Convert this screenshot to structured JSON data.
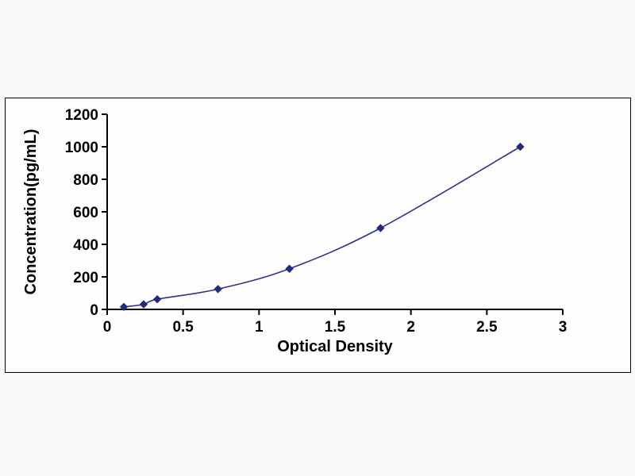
{
  "chart_data": {
    "type": "line",
    "title": "",
    "xlabel": "Optical Density",
    "ylabel": "Concentration(pg/mL)",
    "x": [
      0.11,
      0.24,
      0.33,
      0.73,
      1.2,
      1.8,
      2.72
    ],
    "y": [
      15.6,
      31.2,
      62.5,
      125,
      250,
      500,
      1000
    ],
    "xlim": [
      0,
      3
    ],
    "ylim": [
      0,
      1200
    ],
    "x_ticks": [
      0,
      0.5,
      1,
      1.5,
      2,
      2.5,
      3
    ],
    "x_tick_labels": [
      "0",
      "0.5",
      "1",
      "1.5",
      "2",
      "2.5",
      "3"
    ],
    "y_ticks": [
      0,
      200,
      400,
      600,
      800,
      1000,
      1200
    ],
    "y_tick_labels": [
      "0",
      "200",
      "400",
      "600",
      "800",
      "1000",
      "1200"
    ],
    "grid": false,
    "legend": "none",
    "marker": "diamond",
    "colors": {
      "line": "#2e3192",
      "marker": "#242b7a",
      "axis": "#000000",
      "tick_text": "#000000"
    }
  }
}
